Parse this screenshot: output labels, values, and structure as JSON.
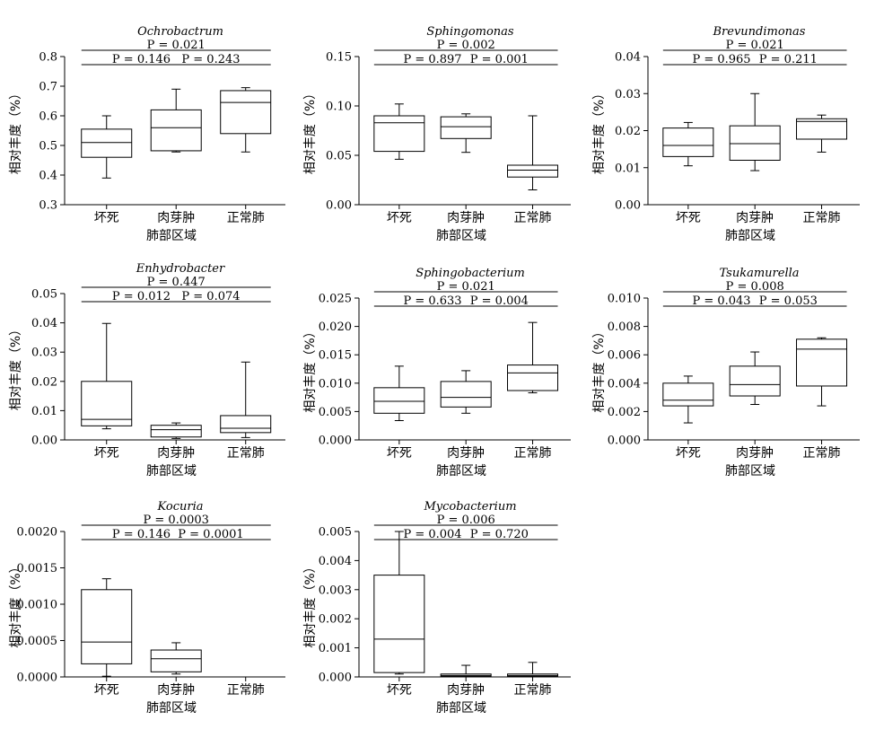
{
  "chart_data": [
    {
      "type": "box",
      "title": "Ochrobactrum",
      "xlabel": "肺部区域",
      "ylabel": "相对丰度（%）",
      "categories": [
        "坏死",
        "肉芽肿",
        "正常肺"
      ],
      "ylim": [
        0.3,
        0.8
      ],
      "yticks": [
        "0.3",
        "0.4",
        "0.5",
        "0.6",
        "0.7",
        "0.8"
      ],
      "boxes": [
        {
          "min": 0.39,
          "q1": 0.46,
          "median": 0.51,
          "q3": 0.555,
          "max": 0.6
        },
        {
          "min": 0.478,
          "q1": 0.482,
          "median": 0.56,
          "q3": 0.62,
          "max": 0.69
        },
        {
          "min": 0.478,
          "q1": 0.54,
          "median": 0.645,
          "q3": 0.685,
          "max": 0.695
        }
      ],
      "comparisons": [
        {
          "label": "P = 0.021",
          "from": 0,
          "to": 2,
          "level": 2
        },
        {
          "label": "P = 0.146",
          "from": 0,
          "to": 1,
          "level": 1
        },
        {
          "label": "P = 0.243",
          "from": 1,
          "to": 2,
          "level": 1
        }
      ]
    },
    {
      "type": "box",
      "title": "Sphingomonas",
      "xlabel": "肺部区域",
      "ylabel": "相对丰度（%）",
      "categories": [
        "坏死",
        "肉芽肿",
        "正常肺"
      ],
      "ylim": [
        0,
        0.15
      ],
      "yticks": [
        "0.00",
        "0.05",
        "0.10",
        "0.15"
      ],
      "boxes": [
        {
          "min": 0.046,
          "q1": 0.054,
          "median": 0.083,
          "q3": 0.09,
          "max": 0.102
        },
        {
          "min": 0.053,
          "q1": 0.067,
          "median": 0.079,
          "q3": 0.089,
          "max": 0.092
        },
        {
          "min": 0.015,
          "q1": 0.028,
          "median": 0.035,
          "q3": 0.04,
          "max": 0.09
        }
      ],
      "comparisons": [
        {
          "label": "P = 0.002",
          "from": 0,
          "to": 2,
          "level": 2
        },
        {
          "label": "P = 0.897",
          "from": 0,
          "to": 1,
          "level": 1
        },
        {
          "label": "P = 0.001",
          "from": 1,
          "to": 2,
          "level": 1
        }
      ]
    },
    {
      "type": "box",
      "title": "Brevundimonas",
      "xlabel": "肺部区域",
      "ylabel": "相对丰度（%）",
      "categories": [
        "坏死",
        "肉芽肿",
        "正常肺"
      ],
      "ylim": [
        0,
        0.04
      ],
      "yticks": [
        "0.00",
        "0.01",
        "0.02",
        "0.03",
        "0.04"
      ],
      "boxes": [
        {
          "min": 0.0105,
          "q1": 0.013,
          "median": 0.016,
          "q3": 0.0207,
          "max": 0.0222
        },
        {
          "min": 0.0092,
          "q1": 0.012,
          "median": 0.0165,
          "q3": 0.0213,
          "max": 0.03
        },
        {
          "min": 0.0142,
          "q1": 0.0177,
          "median": 0.0225,
          "q3": 0.0232,
          "max": 0.0242
        }
      ],
      "comparisons": [
        {
          "label": "P = 0.021",
          "from": 0,
          "to": 2,
          "level": 2
        },
        {
          "label": "P = 0.965",
          "from": 0,
          "to": 1,
          "level": 1
        },
        {
          "label": "P = 0.211",
          "from": 1,
          "to": 2,
          "level": 1
        }
      ]
    },
    {
      "type": "box",
      "title": "Enhydrobacter",
      "xlabel": "肺部区域",
      "ylabel": "相对丰度（%）",
      "categories": [
        "坏死",
        "肉芽肿",
        "正常肺"
      ],
      "ylim": [
        0,
        0.05
      ],
      "yticks": [
        "0.00",
        "0.01",
        "0.02",
        "0.03",
        "0.04",
        "0.05"
      ],
      "boxes": [
        {
          "min": 0.0038,
          "q1": 0.0048,
          "median": 0.007,
          "q3": 0.02,
          "max": 0.0398
        },
        {
          "min": 0.0005,
          "q1": 0.001,
          "median": 0.0035,
          "q3": 0.005,
          "max": 0.0058
        },
        {
          "min": 0.0008,
          "q1": 0.0025,
          "median": 0.004,
          "q3": 0.0083,
          "max": 0.0266
        }
      ],
      "comparisons": [
        {
          "label": "P = 0.447",
          "from": 0,
          "to": 2,
          "level": 2
        },
        {
          "label": "P = 0.012",
          "from": 0,
          "to": 1,
          "level": 1
        },
        {
          "label": "P = 0.074",
          "from": 1,
          "to": 2,
          "level": 1
        }
      ]
    },
    {
      "type": "box",
      "title": "Sphingobacterium",
      "xlabel": "肺部区域",
      "ylabel": "相对丰度（%）",
      "categories": [
        "坏死",
        "肉芽肿",
        "正常肺"
      ],
      "ylim": [
        0,
        0.025
      ],
      "yticks": [
        "0.000",
        "0.005",
        "0.010",
        "0.015",
        "0.020",
        "0.025"
      ],
      "boxes": [
        {
          "min": 0.0034,
          "q1": 0.0047,
          "median": 0.0068,
          "q3": 0.0092,
          "max": 0.013
        },
        {
          "min": 0.0047,
          "q1": 0.0058,
          "median": 0.0075,
          "q3": 0.0103,
          "max": 0.0122
        },
        {
          "min": 0.0083,
          "q1": 0.0087,
          "median": 0.0118,
          "q3": 0.0132,
          "max": 0.0207
        }
      ],
      "comparisons": [
        {
          "label": "P = 0.021",
          "from": 0,
          "to": 2,
          "level": 2
        },
        {
          "label": "P = 0.633",
          "from": 0,
          "to": 1,
          "level": 1
        },
        {
          "label": "P = 0.004",
          "from": 1,
          "to": 2,
          "level": 1
        }
      ]
    },
    {
      "type": "box",
      "title": "Tsukamurella",
      "xlabel": "肺部区域",
      "ylabel": "相对丰度（%）",
      "categories": [
        "坏死",
        "肉芽肿",
        "正常肺"
      ],
      "ylim": [
        0,
        0.01
      ],
      "yticks": [
        "0.000",
        "0.002",
        "0.004",
        "0.006",
        "0.008",
        "0.010"
      ],
      "boxes": [
        {
          "min": 0.0012,
          "q1": 0.0024,
          "median": 0.0028,
          "q3": 0.004,
          "max": 0.0045
        },
        {
          "min": 0.0025,
          "q1": 0.0031,
          "median": 0.0039,
          "q3": 0.0052,
          "max": 0.0062
        },
        {
          "min": 0.0024,
          "q1": 0.0038,
          "median": 0.0064,
          "q3": 0.0071,
          "max": 0.0072
        }
      ],
      "comparisons": [
        {
          "label": "P = 0.008",
          "from": 0,
          "to": 2,
          "level": 2
        },
        {
          "label": "P = 0.043",
          "from": 0,
          "to": 1,
          "level": 1
        },
        {
          "label": "P = 0.053",
          "from": 1,
          "to": 2,
          "level": 1
        }
      ]
    },
    {
      "type": "box",
      "title": "Kocuria",
      "xlabel": "肺部区域",
      "ylabel": "相对丰度（%）",
      "categories": [
        "坏死",
        "肉芽肿",
        "正常肺"
      ],
      "ylim": [
        0,
        0.002
      ],
      "yticks": [
        "0.0000",
        "0.0005",
        "0.0010",
        "0.0015",
        "0.0020"
      ],
      "boxes": [
        {
          "min": 1e-05,
          "q1": 0.00018,
          "median": 0.00048,
          "q3": 0.0012,
          "max": 0.00135
        },
        {
          "min": 4e-05,
          "q1": 7e-05,
          "median": 0.00025,
          "q3": 0.00037,
          "max": 0.00047
        },
        {
          "min": 0,
          "q1": 0,
          "median": 0,
          "q3": 0,
          "max": 0
        }
      ],
      "comparisons": [
        {
          "label": "P = 0.0003",
          "from": 0,
          "to": 2,
          "level": 2
        },
        {
          "label": "P = 0.146",
          "from": 0,
          "to": 1,
          "level": 1
        },
        {
          "label": "P = 0.0001",
          "from": 1,
          "to": 2,
          "level": 1
        }
      ]
    },
    {
      "type": "box",
      "title": "Mycobacterium",
      "xlabel": "肺部区域",
      "ylabel": "相对丰度（%）",
      "categories": [
        "坏死",
        "肉芽肿",
        "正常肺"
      ],
      "ylim": [
        0,
        0.005
      ],
      "yticks": [
        "0.000",
        "0.001",
        "0.002",
        "0.003",
        "0.004",
        "0.005"
      ],
      "boxes": [
        {
          "min": 0.0001,
          "q1": 0.00015,
          "median": 0.0013,
          "q3": 0.0035,
          "max": 0.005
        },
        {
          "min": 0,
          "q1": 2e-05,
          "median": 5e-05,
          "q3": 0.0001,
          "max": 0.0004
        },
        {
          "min": 0,
          "q1": 2e-05,
          "median": 5e-05,
          "q3": 0.0001,
          "max": 0.0005
        }
      ],
      "comparisons": [
        {
          "label": "P = 0.006",
          "from": 0,
          "to": 2,
          "level": 2
        },
        {
          "label": "P = 0.004",
          "from": 0,
          "to": 1,
          "level": 1
        },
        {
          "label": "P = 0.720",
          "from": 1,
          "to": 2,
          "level": 1
        }
      ]
    }
  ]
}
